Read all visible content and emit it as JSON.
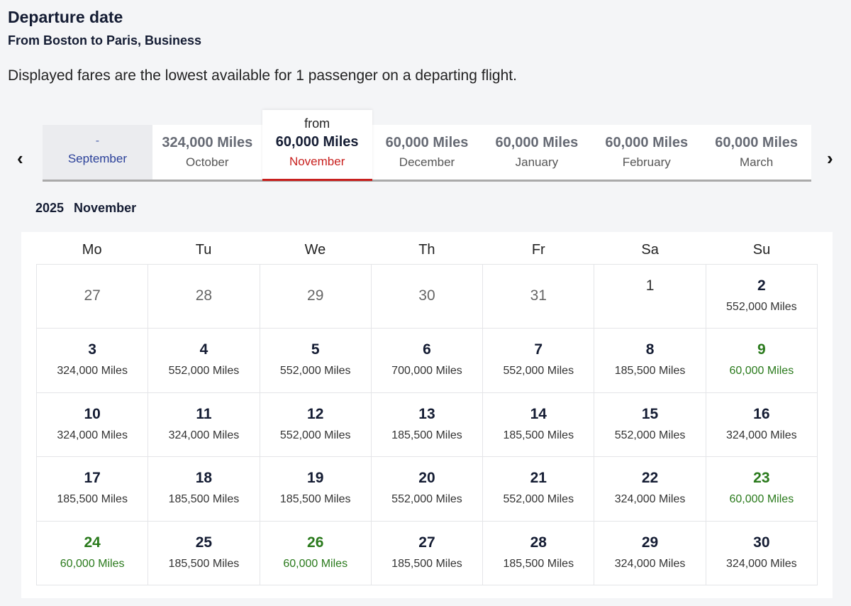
{
  "title": "Departure date",
  "subtitle": "From Boston to Paris, Business",
  "note": "Displayed fares are the lowest available for 1 passenger on a departing flight.",
  "colors": {
    "accent_red": "#c8201e",
    "lowest_green": "#2a7a1c",
    "text_dark": "#141c33"
  },
  "nav": {
    "prev_icon": "chevron-left-icon",
    "next_icon": "chevron-right-icon",
    "prev": "‹",
    "next": "›"
  },
  "months": [
    {
      "price": "-",
      "month": "September",
      "state": "disabled"
    },
    {
      "price": "324,000 Miles",
      "month": "October"
    },
    {
      "prefix": "from",
      "price": "60,000 Miles",
      "month": "November",
      "state": "selected"
    },
    {
      "price": "60,000 Miles",
      "month": "December"
    },
    {
      "price": "60,000 Miles",
      "month": "January"
    },
    {
      "price": "60,000 Miles",
      "month": "February"
    },
    {
      "price": "60,000 Miles",
      "month": "March"
    }
  ],
  "calendar": {
    "year": "2025",
    "month": "November",
    "weekdays": [
      "Mo",
      "Tu",
      "We",
      "Th",
      "Fr",
      "Sa",
      "Su"
    ],
    "weeks": [
      [
        {
          "day": "27",
          "muted": true
        },
        {
          "day": "28",
          "muted": true
        },
        {
          "day": "29",
          "muted": true
        },
        {
          "day": "30",
          "muted": true
        },
        {
          "day": "31",
          "muted": true
        },
        {
          "day": "1",
          "nofare": true
        },
        {
          "day": "2",
          "miles": "552,000 Miles"
        }
      ],
      [
        {
          "day": "3",
          "miles": "324,000 Miles"
        },
        {
          "day": "4",
          "miles": "552,000 Miles"
        },
        {
          "day": "5",
          "miles": "552,000 Miles"
        },
        {
          "day": "6",
          "miles": "700,000 Miles"
        },
        {
          "day": "7",
          "miles": "552,000 Miles"
        },
        {
          "day": "8",
          "miles": "185,500 Miles"
        },
        {
          "day": "9",
          "miles": "60,000 Miles",
          "lowest": true
        }
      ],
      [
        {
          "day": "10",
          "miles": "324,000 Miles"
        },
        {
          "day": "11",
          "miles": "324,000 Miles"
        },
        {
          "day": "12",
          "miles": "552,000 Miles"
        },
        {
          "day": "13",
          "miles": "185,500 Miles"
        },
        {
          "day": "14",
          "miles": "185,500 Miles"
        },
        {
          "day": "15",
          "miles": "552,000 Miles"
        },
        {
          "day": "16",
          "miles": "324,000 Miles"
        }
      ],
      [
        {
          "day": "17",
          "miles": "185,500 Miles"
        },
        {
          "day": "18",
          "miles": "185,500 Miles"
        },
        {
          "day": "19",
          "miles": "185,500 Miles"
        },
        {
          "day": "20",
          "miles": "552,000 Miles"
        },
        {
          "day": "21",
          "miles": "552,000 Miles"
        },
        {
          "day": "22",
          "miles": "324,000 Miles"
        },
        {
          "day": "23",
          "miles": "60,000 Miles",
          "lowest": true
        }
      ],
      [
        {
          "day": "24",
          "miles": "60,000 Miles",
          "lowest": true
        },
        {
          "day": "25",
          "miles": "185,500 Miles"
        },
        {
          "day": "26",
          "miles": "60,000 Miles",
          "lowest": true
        },
        {
          "day": "27",
          "miles": "185,500 Miles"
        },
        {
          "day": "28",
          "miles": "185,500 Miles"
        },
        {
          "day": "29",
          "miles": "324,000 Miles"
        },
        {
          "day": "30",
          "miles": "324,000 Miles"
        }
      ]
    ]
  }
}
